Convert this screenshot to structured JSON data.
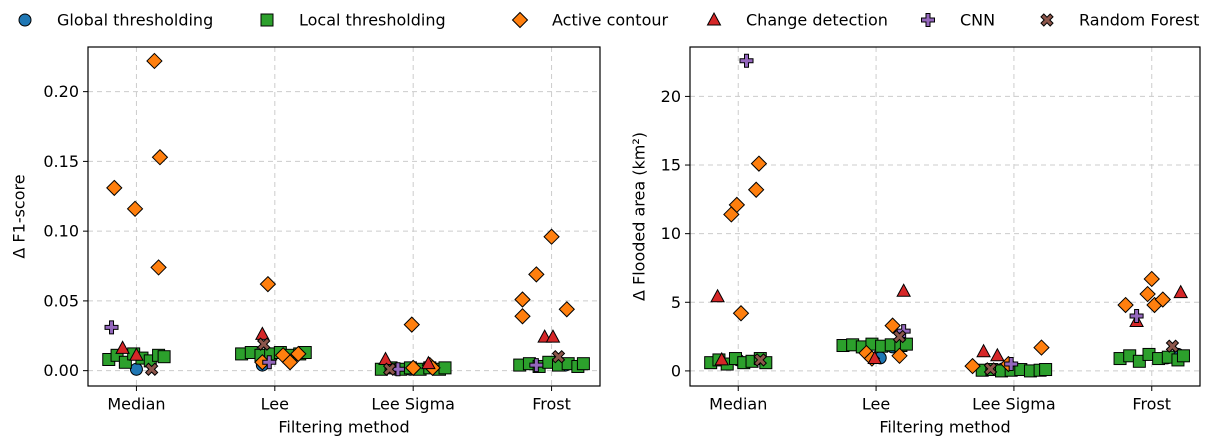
{
  "chart_data": [
    {
      "type": "scatter",
      "xlabel": "Filtering method",
      "ylabel": "Δ F1-score",
      "xlim": [
        -0.35,
        3.35
      ],
      "ylim": [
        -0.011,
        0.232
      ],
      "xticks": [
        {
          "value": 0,
          "label": "Median"
        },
        {
          "value": 1,
          "label": "Lee"
        },
        {
          "value": 2,
          "label": "Lee Sigma"
        },
        {
          "value": 3,
          "label": "Frost"
        }
      ],
      "yticks": [
        {
          "value": 0,
          "label": "0.00"
        },
        {
          "value": 0.05,
          "label": "0.05"
        },
        {
          "value": 0.1,
          "label": "0.10"
        },
        {
          "value": 0.15,
          "label": "0.15"
        },
        {
          "value": 0.2,
          "label": "0.20"
        }
      ],
      "grid": true,
      "series": [
        {
          "name": "Global thresholding",
          "color": "#1f77b4",
          "marker": "circle",
          "x": [
            0.0,
            0.91,
            1.98,
            3.1
          ],
          "values": [
            0.001,
            0.004,
            0.001,
            0.004
          ]
        },
        {
          "name": "Local thresholding",
          "color": "#2ca02c",
          "marker": "square",
          "x": [
            -0.2,
            -0.14,
            -0.08,
            -0.02,
            0.04,
            0.1,
            0.16,
            0.2,
            0.76,
            0.83,
            0.9,
            0.97,
            1.04,
            1.11,
            1.18,
            1.22,
            1.77,
            1.84,
            1.91,
            1.98,
            2.05,
            2.12,
            2.19,
            2.23,
            2.77,
            2.84,
            2.91,
            2.98,
            3.05,
            3.12,
            3.19,
            3.23
          ],
          "values": [
            0.008,
            0.011,
            0.006,
            0.012,
            0.009,
            0.007,
            0.011,
            0.01,
            0.012,
            0.013,
            0.011,
            0.012,
            0.013,
            0.011,
            0.012,
            0.013,
            0.001,
            0.002,
            0.001,
            0.002,
            0.001,
            0.002,
            0.001,
            0.002,
            0.004,
            0.005,
            0.003,
            0.006,
            0.004,
            0.005,
            0.003,
            0.005
          ]
        },
        {
          "name": "Active contour",
          "color": "#ff7f0e",
          "marker": "diamond",
          "x": [
            -0.16,
            -0.01,
            0.13,
            0.17,
            0.16,
            0.95,
            0.91,
            1.06,
            1.11,
            1.17,
            1.99,
            2.0,
            2.12,
            2.14,
            2.79,
            2.79,
            2.89,
            3.0,
            3.11
          ],
          "values": [
            0.131,
            0.116,
            0.222,
            0.153,
            0.074,
            0.062,
            0.006,
            0.011,
            0.006,
            0.012,
            0.033,
            0.002,
            0.004,
            0.002,
            0.051,
            0.039,
            0.069,
            0.096,
            0.044
          ]
        },
        {
          "name": "Change detection",
          "color": "#d62728",
          "marker": "triangle",
          "x": [
            -0.1,
            0.0,
            0.91,
            1.8,
            2.11,
            2.95,
            3.01
          ],
          "values": [
            0.016,
            0.011,
            0.026,
            0.008,
            0.005,
            0.024,
            0.024
          ]
        },
        {
          "name": "CNN",
          "color": "#9467bd",
          "marker": "plus",
          "x": [
            -0.18,
            0.96,
            1.89,
            2.89
          ],
          "values": [
            0.031,
            0.006,
            0.001,
            0.004
          ]
        },
        {
          "name": "Random Forest",
          "color": "#8c564b",
          "marker": "x",
          "x": [
            0.11,
            0.92,
            1.83,
            3.05
          ],
          "values": [
            0.001,
            0.019,
            0.001,
            0.01
          ]
        }
      ]
    },
    {
      "type": "scatter",
      "xlabel": "Filtering method",
      "ylabel": "Δ Flooded area (km²)",
      "xlim": [
        -0.35,
        3.35
      ],
      "ylim": [
        -1.1,
        23.6
      ],
      "xticks": [
        {
          "value": 0,
          "label": "Median"
        },
        {
          "value": 1,
          "label": "Lee"
        },
        {
          "value": 2,
          "label": "Lee Sigma"
        },
        {
          "value": 3,
          "label": "Frost"
        }
      ],
      "yticks": [
        0,
        5,
        10,
        15,
        20
      ],
      "grid": true,
      "series": [
        {
          "color": "#1f77b4",
          "marker": "circle",
          "x": [
            0.0,
            1.03,
            1.12,
            1.92,
            3.11,
            3.19
          ],
          "values": [
            0.8,
            0.95,
            1.75,
            0.15,
            0.95,
            1.2
          ]
        },
        {
          "color": "#2ca02c",
          "marker": "square",
          "x": [
            -0.2,
            -0.14,
            -0.08,
            -0.02,
            0.04,
            0.1,
            0.16,
            0.2,
            0.76,
            0.83,
            0.9,
            0.97,
            1.04,
            1.11,
            1.18,
            1.22,
            1.77,
            1.84,
            1.91,
            1.98,
            2.05,
            2.12,
            2.19,
            2.23,
            2.77,
            2.84,
            2.91,
            2.98,
            3.05,
            3.12,
            3.19,
            3.23
          ],
          "values": [
            0.6,
            0.8,
            0.5,
            0.9,
            0.6,
            0.7,
            0.9,
            0.6,
            1.85,
            1.9,
            1.75,
            1.95,
            1.8,
            1.9,
            1.85,
            1.95,
            0.05,
            0.1,
            0.0,
            0.05,
            0.1,
            0.0,
            0.05,
            0.1,
            0.9,
            1.1,
            0.7,
            1.2,
            0.9,
            1.0,
            0.8,
            1.1
          ]
        },
        {
          "color": "#ff7f0e",
          "marker": "diamond",
          "x": [
            -0.05,
            -0.01,
            0.02,
            0.13,
            0.15,
            0.93,
            0.97,
            1.12,
            1.17,
            1.7,
            1.96,
            2.2,
            2.81,
            2.97,
            3.0,
            3.02,
            3.08
          ],
          "values": [
            11.4,
            12.1,
            4.2,
            13.2,
            15.1,
            1.3,
            0.9,
            3.3,
            1.1,
            0.35,
            0.5,
            1.7,
            4.8,
            5.6,
            6.7,
            4.8,
            5.2
          ]
        },
        {
          "color": "#d62728",
          "marker": "triangle",
          "x": [
            -0.15,
            -0.12,
            0.99,
            1.2,
            1.78,
            1.88,
            2.89,
            3.21
          ],
          "values": [
            5.4,
            0.8,
            0.9,
            5.8,
            1.4,
            1.1,
            3.6,
            5.7
          ]
        },
        {
          "color": "#9467bd",
          "marker": "plus",
          "x": [
            0.06,
            1.2,
            1.98,
            2.89
          ],
          "values": [
            22.6,
            2.9,
            0.5,
            4.0
          ]
        },
        {
          "color": "#8c564b",
          "marker": "x",
          "x": [
            0.16,
            1.17,
            1.83,
            3.15
          ],
          "values": [
            0.8,
            2.5,
            0.15,
            1.8
          ]
        }
      ]
    }
  ]
}
